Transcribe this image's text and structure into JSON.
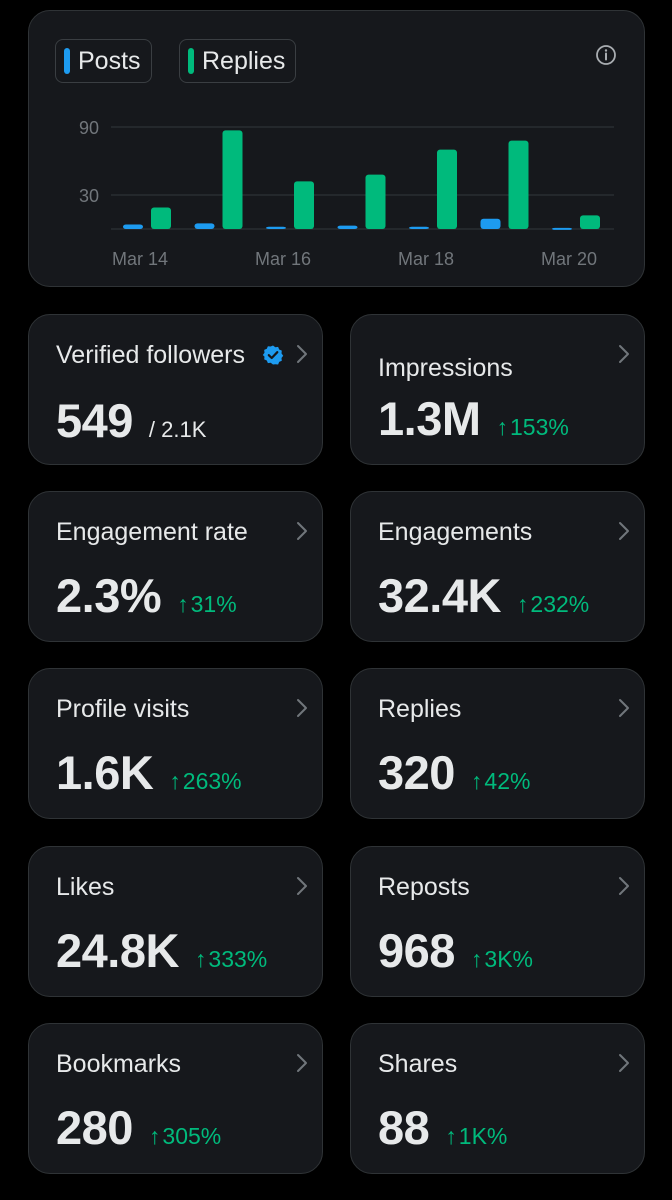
{
  "chart": {
    "legend": [
      {
        "label": "Posts",
        "color": "#1d9bf0"
      },
      {
        "label": "Replies",
        "color": "#00ba7c"
      }
    ],
    "info_icon": "info-icon"
  },
  "chart_data": {
    "type": "bar",
    "categories": [
      "Mar 14",
      "Mar 15",
      "Mar 16",
      "Mar 17",
      "Mar 18",
      "Mar 19",
      "Mar 20"
    ],
    "x_tick_labels": [
      "Mar 14",
      "Mar 16",
      "Mar 18",
      "Mar 20"
    ],
    "y_ticks": [
      30,
      90
    ],
    "ylim": [
      0,
      105
    ],
    "grid": true,
    "series": [
      {
        "name": "Posts",
        "color": "#1d9bf0",
        "values": [
          4,
          5,
          2,
          3,
          2,
          9,
          1
        ]
      },
      {
        "name": "Replies",
        "color": "#00ba7c",
        "values": [
          19,
          87,
          42,
          48,
          70,
          78,
          12
        ]
      }
    ]
  },
  "metrics": [
    {
      "label": "Verified followers",
      "value": "549",
      "sub": "/ 2.1K",
      "change": "",
      "verified": true
    },
    {
      "label": "Impressions",
      "value": "1.3M",
      "change": "153%"
    },
    {
      "label": "Engagement rate",
      "value": "2.3%",
      "change": "31%"
    },
    {
      "label": "Engagements",
      "value": "32.4K",
      "change": "232%"
    },
    {
      "label": "Profile visits",
      "value": "1.6K",
      "change": "263%"
    },
    {
      "label": "Replies",
      "value": "320",
      "change": "42%"
    },
    {
      "label": "Likes",
      "value": "24.8K",
      "change": "333%"
    },
    {
      "label": "Reposts",
      "value": "968",
      "change": "3K%"
    },
    {
      "label": "Bookmarks",
      "value": "280",
      "change": "305%"
    },
    {
      "label": "Shares",
      "value": "88",
      "change": "1K%"
    }
  ],
  "icons": {
    "chevron": "chevron-right-icon",
    "verified": "verified-badge-icon",
    "arrow": "↑"
  }
}
